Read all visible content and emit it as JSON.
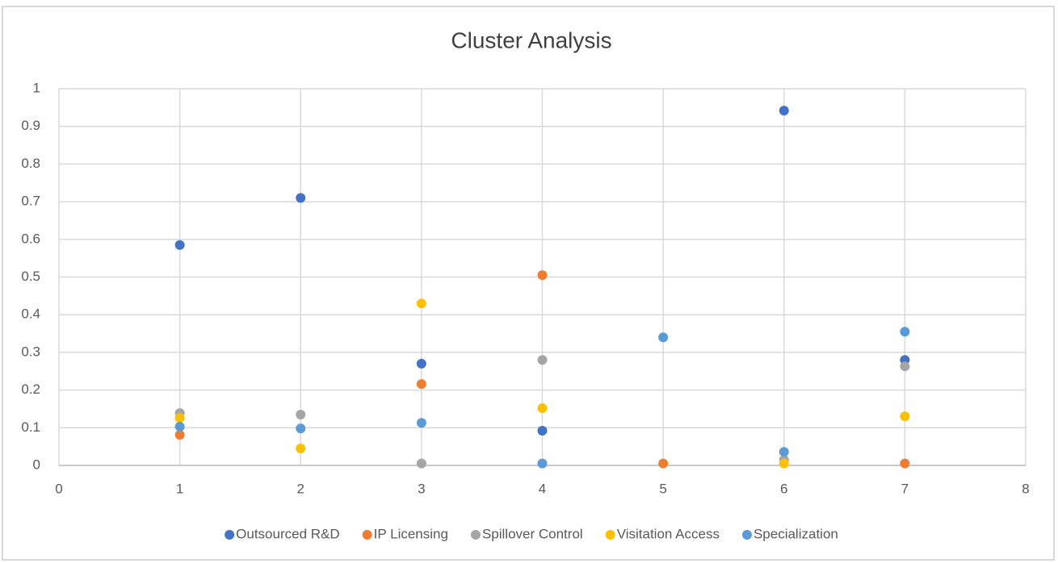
{
  "chart_data": {
    "type": "scatter",
    "title": "Cluster Analysis",
    "series": [
      {
        "name": "Outsourced R&D",
        "color": "#4472c4",
        "x": [
          1,
          2,
          3,
          4,
          6,
          7
        ],
        "values": [
          0.585,
          0.71,
          0.27,
          0.092,
          0.942,
          0.28
        ]
      },
      {
        "name": "IP Licensing",
        "color": "#ed7d31",
        "x": [
          1,
          3,
          4,
          5,
          7
        ],
        "values": [
          0.081,
          0.216,
          0.505,
          0.005,
          0.005
        ]
      },
      {
        "name": "Spillover Control",
        "color": "#a5a5a5",
        "x": [
          1,
          2,
          3,
          4,
          6,
          7
        ],
        "values": [
          0.139,
          0.135,
          0.005,
          0.28,
          0.015,
          0.263
        ]
      },
      {
        "name": "Visitation Access",
        "color": "#ffc000",
        "x": [
          1,
          2,
          3,
          4,
          6,
          7
        ],
        "values": [
          0.126,
          0.045,
          0.43,
          0.152,
          0.005,
          0.13
        ]
      },
      {
        "name": "Specialization",
        "color": "#5b9bd5",
        "x": [
          1,
          2,
          3,
          4,
          5,
          6,
          7
        ],
        "values": [
          0.103,
          0.098,
          0.113,
          0.005,
          0.34,
          0.036,
          0.355
        ]
      }
    ],
    "xlim": [
      0,
      8
    ],
    "xticks": [
      0,
      1,
      2,
      3,
      4,
      5,
      6,
      7,
      8
    ],
    "ylim": [
      0,
      1
    ],
    "yticks": [
      0,
      0.1,
      0.2,
      0.3,
      0.4,
      0.5,
      0.6,
      0.7,
      0.8,
      0.9,
      1
    ],
    "grid": true,
    "legend": "bottom"
  }
}
